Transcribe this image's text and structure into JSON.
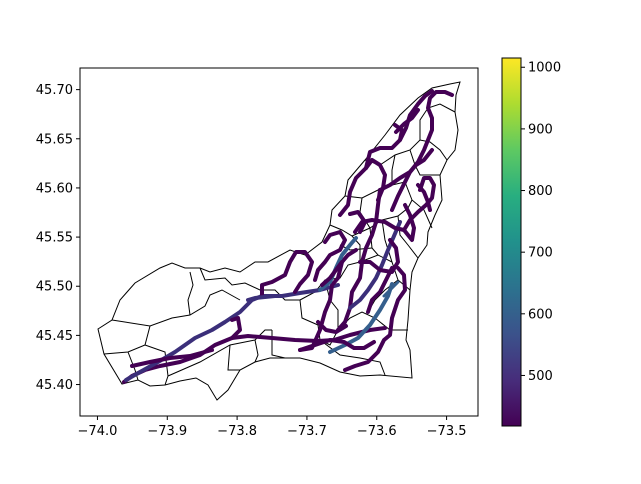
{
  "map": {
    "x_ticks": [
      {
        "value": -74.0,
        "label": "−74.0"
      },
      {
        "value": -73.9,
        "label": "−73.9"
      },
      {
        "value": -73.8,
        "label": "−73.8"
      },
      {
        "value": -73.7,
        "label": "−73.7"
      },
      {
        "value": -73.6,
        "label": "−73.6"
      },
      {
        "value": -73.5,
        "label": "−73.5"
      }
    ],
    "y_ticks": [
      {
        "value": 45.4,
        "label": "45.40"
      },
      {
        "value": 45.45,
        "label": "45.45"
      },
      {
        "value": 45.5,
        "label": "45.50"
      },
      {
        "value": 45.55,
        "label": "45.55"
      },
      {
        "value": 45.6,
        "label": "45.60"
      },
      {
        "value": 45.65,
        "label": "45.65"
      },
      {
        "value": 45.7,
        "label": "45.70"
      }
    ],
    "xlim": [
      -74.025,
      -73.455
    ],
    "ylim": [
      45.368,
      45.722
    ]
  },
  "colorbar": {
    "colormap": "viridis",
    "range": [
      418,
      1015
    ],
    "ticks": [
      {
        "value": 500,
        "label": "500"
      },
      {
        "value": 600,
        "label": "600"
      },
      {
        "value": 700,
        "label": "700"
      },
      {
        "value": 800,
        "label": "800"
      },
      {
        "value": 900,
        "label": "900"
      },
      {
        "value": 1000,
        "label": "1000"
      }
    ]
  },
  "colors": {
    "route_dark": "#440154",
    "route_mid": "#3b2f7a",
    "route_blue": "#355f8d",
    "district_outline": "#000000"
  }
}
